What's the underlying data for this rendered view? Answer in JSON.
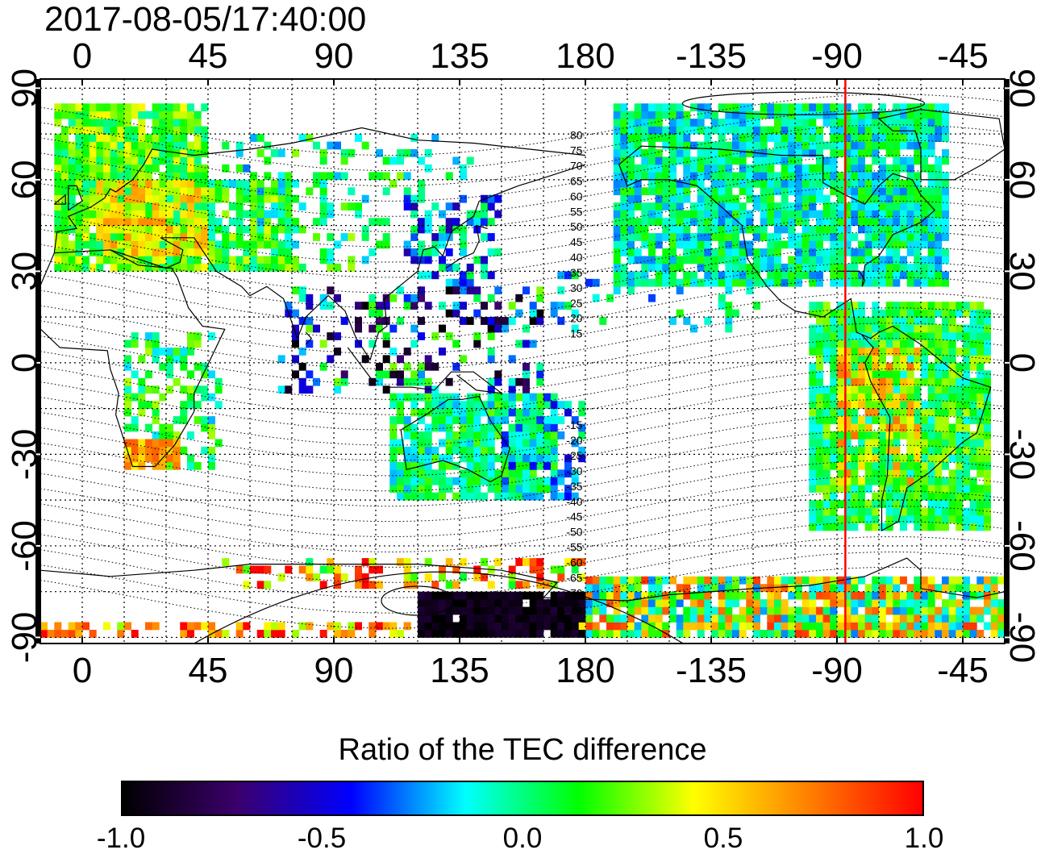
{
  "timestamp": "2017-08-05/17:40:00",
  "map": {
    "projection": "equirectangular",
    "lon_range": [
      -15,
      330
    ],
    "lat_range": [
      -92,
      93
    ],
    "top_lon_ticks": [
      "0",
      "45",
      "90",
      "135",
      "180",
      "-135",
      "-90",
      "-45"
    ],
    "bottom_lon_ticks": [
      "0",
      "45",
      "90",
      "135",
      "180",
      "-135",
      "-90",
      "-45"
    ],
    "left_lat_ticks": [
      "90",
      "60",
      "30",
      "0",
      "-30",
      "-60",
      "-90"
    ],
    "right_lat_ticks": [
      "90",
      "60",
      "30",
      "0",
      "-30",
      "-60",
      "-90"
    ],
    "grid": "dotted, every 15 degrees",
    "red_meridian_lon": -87,
    "contour_labels": [
      "80",
      "75",
      "70",
      "65",
      "60",
      "55",
      "50",
      "45",
      "40",
      "35",
      "30",
      "25",
      "20",
      "15",
      "-15",
      "-20",
      "-25",
      "-30",
      "-35",
      "-40",
      "-45",
      "-50",
      "-55",
      "-60",
      "-65",
      "-70",
      "-75"
    ]
  },
  "colorbar": {
    "title": "Ratio of the TEC difference",
    "min": -1.0,
    "max": 1.0,
    "tick_labels": [
      "-1.0",
      "-0.5",
      "0.0",
      "0.5",
      "1.0"
    ],
    "colors": [
      "#000000",
      "#3b006b",
      "#0000ff",
      "#00ffff",
      "#00ff00",
      "#ffff00",
      "#ff8000",
      "#ff0000"
    ]
  }
}
